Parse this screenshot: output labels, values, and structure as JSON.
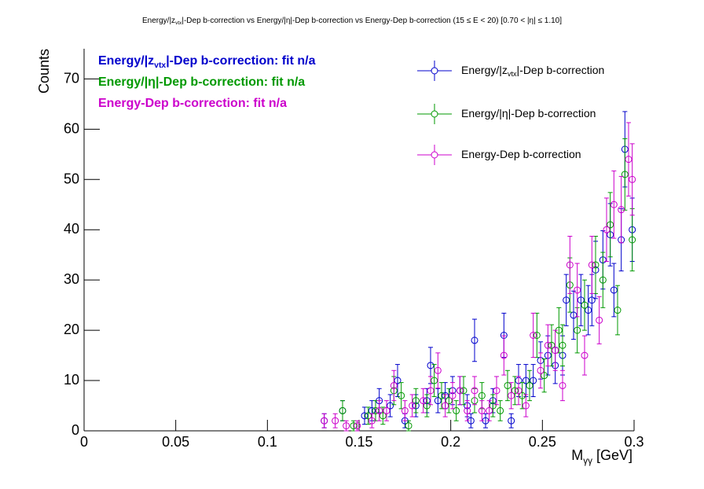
{
  "chart_data": {
    "type": "scatter",
    "title": "Energy/|z_{vtx}|-Dep b-correction vs Energy/|η|-Dep b-correction vs Energy-Dep b-correction   (15 ≤ E < 20)   [0.70 < |η| ≤ 1.10]",
    "x_label": "M_{γγ} [GeV]",
    "y_label": "Counts",
    "annotations": [
      {
        "text": "Energy/|z_{vtx}|-Dep b-correction: fit n/a",
        "color": "#0000cc"
      },
      {
        "text": "Energy/|η|-Dep b-correction: fit n/a",
        "color": "#009900"
      },
      {
        "text": "Energy-Dep b-correction: fit n/a",
        "color": "#cc00cc"
      }
    ],
    "xlim": [
      0,
      0.3
    ],
    "ylim": [
      0,
      76
    ],
    "xticks": [
      0,
      0.05,
      0.1,
      0.15,
      0.2,
      0.25,
      0.3
    ],
    "yticks": [
      0,
      10,
      20,
      30,
      40,
      50,
      60,
      70
    ],
    "series": [
      {
        "name": "Energy/|z_{vtx}|-Dep b-correction",
        "color": "#0000cc",
        "x": [
          0.131,
          0.141,
          0.153,
          0.157,
          0.161,
          0.167,
          0.171,
          0.175,
          0.181,
          0.187,
          0.189,
          0.193,
          0.197,
          0.201,
          0.205,
          0.209,
          0.211,
          0.213,
          0.219,
          0.223,
          0.229,
          0.233,
          0.237,
          0.241,
          0.245,
          0.249,
          0.253,
          0.257,
          0.261,
          0.263,
          0.267,
          0.271,
          0.275,
          0.277,
          0.279,
          0.283,
          0.287,
          0.289,
          0.293,
          0.295,
          0.299
        ],
        "values": [
          2,
          4,
          3,
          4,
          6,
          5,
          10,
          2,
          5,
          6,
          13,
          6,
          7,
          8,
          8,
          5,
          2,
          18,
          2,
          6,
          19,
          2,
          10,
          10,
          10,
          14,
          15,
          13,
          15,
          26,
          23,
          26,
          24,
          26,
          32,
          34,
          39,
          28,
          38,
          56,
          40
        ],
        "errors": [
          1.4,
          2,
          1.7,
          2,
          2.4,
          2.2,
          3.2,
          1.4,
          2.2,
          2.4,
          3.6,
          2.4,
          2.6,
          2.8,
          2.8,
          2.2,
          1.4,
          4.2,
          1.4,
          2.4,
          4.4,
          1.4,
          3.2,
          3.2,
          3.2,
          3.7,
          3.9,
          3.6,
          3.9,
          5.1,
          4.8,
          5.1,
          4.9,
          5.1,
          5.7,
          5.8,
          6.2,
          5.3,
          6.2,
          7.5,
          6.3
        ]
      },
      {
        "name": "Energy/|η|-Dep b-correction",
        "color": "#009900",
        "x": [
          0.141,
          0.147,
          0.155,
          0.159,
          0.163,
          0.169,
          0.173,
          0.177,
          0.181,
          0.187,
          0.191,
          0.195,
          0.199,
          0.203,
          0.207,
          0.213,
          0.217,
          0.223,
          0.227,
          0.231,
          0.235,
          0.239,
          0.243,
          0.247,
          0.251,
          0.255,
          0.259,
          0.261,
          0.265,
          0.269,
          0.273,
          0.279,
          0.283,
          0.287,
          0.291,
          0.295,
          0.299
        ],
        "values": [
          4,
          1,
          3,
          4,
          3,
          8,
          7,
          1,
          6,
          5,
          10,
          7,
          6,
          4,
          8,
          6,
          7,
          5,
          4,
          9,
          8,
          7,
          9,
          19,
          11,
          17,
          20,
          17,
          29,
          20,
          25,
          33,
          30,
          41,
          24,
          51,
          38
        ],
        "errors": [
          2,
          1,
          1.7,
          2,
          1.7,
          2.8,
          2.6,
          1,
          2.4,
          2.2,
          3.2,
          2.6,
          2.4,
          2,
          2.8,
          2.4,
          2.6,
          2.2,
          2,
          3,
          2.8,
          2.6,
          3,
          4.4,
          3.3,
          4.1,
          4.5,
          4.1,
          5.4,
          4.5,
          5,
          5.7,
          5.5,
          6.4,
          4.9,
          7.1,
          6.2
        ]
      },
      {
        "name": "Energy-Dep b-correction",
        "color": "#cc00cc",
        "x": [
          0.131,
          0.137,
          0.143,
          0.149,
          0.157,
          0.161,
          0.165,
          0.169,
          0.175,
          0.179,
          0.185,
          0.189,
          0.193,
          0.197,
          0.201,
          0.205,
          0.209,
          0.213,
          0.217,
          0.221,
          0.225,
          0.229,
          0.233,
          0.237,
          0.241,
          0.245,
          0.249,
          0.253,
          0.257,
          0.261,
          0.265,
          0.269,
          0.273,
          0.277,
          0.281,
          0.285,
          0.289,
          0.293,
          0.297,
          0.299
        ],
        "values": [
          2,
          2,
          1,
          1,
          2,
          4,
          4,
          9,
          4,
          5,
          6,
          8,
          12,
          5,
          7,
          8,
          4,
          8,
          4,
          4,
          8,
          15,
          7,
          8,
          5,
          19,
          12,
          17,
          16,
          9,
          33,
          28,
          15,
          33,
          22,
          40,
          45,
          44,
          54,
          50
        ],
        "errors": [
          1.4,
          1.4,
          1,
          1,
          1.4,
          2,
          2,
          3,
          2,
          2.2,
          2.4,
          2.8,
          3.5,
          2.2,
          2.6,
          2.8,
          2,
          2.8,
          2,
          2,
          2.8,
          3.9,
          2.6,
          2.8,
          2.2,
          4.4,
          3.5,
          4.1,
          4,
          3,
          5.7,
          5.3,
          3.9,
          5.7,
          4.7,
          6.3,
          6.7,
          6.6,
          7.3,
          7.1
        ]
      }
    ]
  }
}
